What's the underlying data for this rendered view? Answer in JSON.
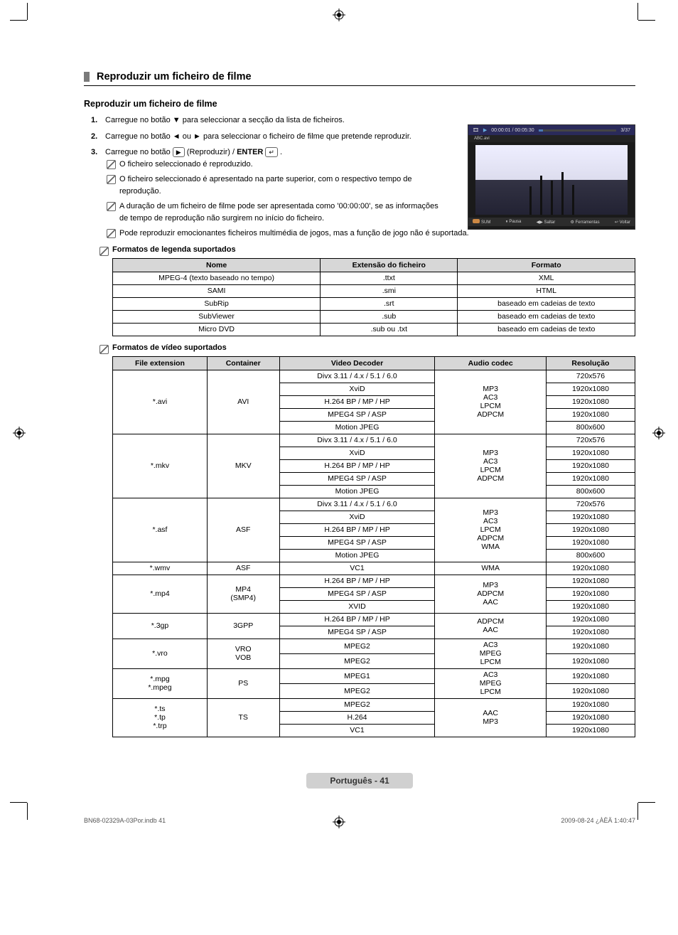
{
  "print": {
    "regmark": true
  },
  "header": {
    "section_title": "Reproduzir um ficheiro de filme"
  },
  "subheading": "Reproduzir um ficheiro de filme",
  "steps": [
    {
      "num": "1.",
      "text": "Carregue no botão ▼ para seleccionar a secção da lista de ficheiros."
    },
    {
      "num": "2.",
      "text": "Carregue no botão ◄ ou ► para seleccionar o ficheiro de filme que pretende reproduzir."
    },
    {
      "num": "3.",
      "text_pre": "Carregue no botão ",
      "btn": "▶",
      "text_mid": " (Reproduzir) / ",
      "bold": "ENTER",
      "enter_icon": "↵",
      "text_post": ".",
      "sub_notes": [
        "O ficheiro seleccionado é reproduzido.",
        "O ficheiro seleccionado é apresentado na parte superior, com o respectivo tempo de reprodução.",
        "A duração de um ficheiro de filme pode ser apresentada como '00:00:00', se as informações de tempo de reprodução não surgirem no início do ficheiro.",
        "Pode reproduzir emocionantes ficheiros multimédia de jogos, mas a função de jogo não é suportada."
      ]
    }
  ],
  "preview": {
    "icon_left": "🎞",
    "play_icon": "▶",
    "time": "00:00:01 / 00:05:30",
    "counter": "3/37",
    "filename": "ABC.avi",
    "sum_label": "SUM",
    "footer_items": [
      "⏸ Pausa",
      "◀▶ Saltar",
      "⚙ Ferramentas",
      "↩ Voltar"
    ]
  },
  "subtitle_table": {
    "heading": "Formatos de legenda suportados",
    "columns": [
      "Nome",
      "Extensão do ficheiro",
      "Formato"
    ],
    "rows": [
      [
        "MPEG-4 (texto baseado no tempo)",
        ".ttxt",
        "XML"
      ],
      [
        "SAMI",
        ".smi",
        "HTML"
      ],
      [
        "SubRip",
        ".srt",
        "baseado em cadeias de texto"
      ],
      [
        "SubViewer",
        ".sub",
        "baseado em cadeias de texto"
      ],
      [
        "Micro DVD",
        ".sub ou .txt",
        "baseado em cadeias de texto"
      ]
    ]
  },
  "video_table": {
    "heading": "Formatos de vídeo suportados",
    "columns": [
      "File extension",
      "Container",
      "Video Decoder",
      "Audio codec",
      "Resolução"
    ],
    "groups": [
      {
        "ext": "*.avi",
        "container": "AVI",
        "audio": "MP3\nAC3\nLPCM\nADPCM",
        "rows": [
          [
            "Divx 3.11 / 4.x / 5.1 / 6.0",
            "720x576"
          ],
          [
            "XviD",
            "1920x1080"
          ],
          [
            "H.264 BP / MP / HP",
            "1920x1080"
          ],
          [
            "MPEG4 SP / ASP",
            "1920x1080"
          ],
          [
            "Motion JPEG",
            "800x600"
          ]
        ]
      },
      {
        "ext": "*.mkv",
        "container": "MKV",
        "audio": "MP3\nAC3\nLPCM\nADPCM",
        "rows": [
          [
            "Divx 3.11 / 4.x / 5.1 / 6.0",
            "720x576"
          ],
          [
            "XviD",
            "1920x1080"
          ],
          [
            "H.264 BP / MP / HP",
            "1920x1080"
          ],
          [
            "MPEG4 SP / ASP",
            "1920x1080"
          ],
          [
            "Motion JPEG",
            "800x600"
          ]
        ]
      },
      {
        "ext": "*.asf",
        "container": "ASF",
        "audio": "MP3\nAC3\nLPCM\nADPCM\nWMA",
        "rows": [
          [
            "Divx 3.11 / 4.x / 5.1 / 6.0",
            "720x576"
          ],
          [
            "XviD",
            "1920x1080"
          ],
          [
            "H.264 BP / MP / HP",
            "1920x1080"
          ],
          [
            "MPEG4 SP / ASP",
            "1920x1080"
          ],
          [
            "Motion JPEG",
            "800x600"
          ]
        ]
      },
      {
        "ext": "*.wmv",
        "container": "ASF",
        "audio": "WMA",
        "rows": [
          [
            "VC1",
            "1920x1080"
          ]
        ]
      },
      {
        "ext": "*.mp4",
        "container": "MP4\n(SMP4)",
        "audio": "MP3\nADPCM\nAAC",
        "rows": [
          [
            "H.264 BP / MP / HP",
            "1920x1080"
          ],
          [
            "MPEG4 SP / ASP",
            "1920x1080"
          ],
          [
            "XVID",
            "1920x1080"
          ]
        ]
      },
      {
        "ext": "*.3gp",
        "container": "3GPP",
        "audio": "ADPCM\nAAC",
        "rows": [
          [
            "H.264 BP / MP / HP",
            "1920x1080"
          ],
          [
            "MPEG4 SP / ASP",
            "1920x1080"
          ]
        ]
      },
      {
        "ext": "*.vro",
        "container": "VRO\nVOB",
        "audio": "AC3\nMPEG\nLPCM",
        "rows": [
          [
            "MPEG2",
            "1920x1080"
          ],
          [
            "MPEG2",
            "1920x1080"
          ]
        ]
      },
      {
        "ext": "*.mpg\n*.mpeg",
        "container": "PS",
        "audio": "AC3\nMPEG\nLPCM",
        "rows": [
          [
            "MPEG1",
            "1920x1080"
          ],
          [
            "MPEG2",
            "1920x1080"
          ]
        ]
      },
      {
        "ext": "*.ts\n*.tp\n*.trp",
        "container": "TS",
        "audio": "AAC\nMP3",
        "rows": [
          [
            "MPEG2",
            "1920x1080"
          ],
          [
            "H.264",
            "1920x1080"
          ],
          [
            "VC1",
            "1920x1080"
          ]
        ]
      }
    ]
  },
  "footer": {
    "page_label": "Português - 41",
    "left": "BN68-02329A-03Por.indb   41",
    "right": "2009-08-24   ¿ÀÈÄ 1:40:47"
  },
  "colors": {
    "header_bg": "#d7d7d7",
    "border": "#000000",
    "preview_bg": "#1a1a1a",
    "preview_header": "#2a2a5a",
    "progress_fill": "#4a7ab3",
    "page_badge_bg": "#d0d0d0"
  }
}
